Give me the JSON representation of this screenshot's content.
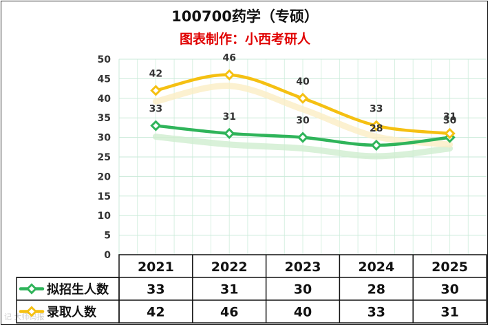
{
  "title": "100700药学（专硕）",
  "subtitle": "图表制作：小西考研人",
  "watermark": "记 大师码报",
  "chart_data": {
    "type": "line",
    "categories": [
      "2021",
      "2022",
      "2023",
      "2024",
      "2025"
    ],
    "series": [
      {
        "name": "拟招生人数",
        "values": [
          33,
          31,
          30,
          28,
          30
        ],
        "color": "#2fb45a"
      },
      {
        "name": "录取人数",
        "values": [
          42,
          46,
          40,
          33,
          31
        ],
        "color": "#f5c012"
      }
    ],
    "ylim": [
      0,
      50
    ],
    "yticks": [
      0,
      5,
      10,
      15,
      20,
      25,
      30,
      35,
      40,
      45,
      50
    ],
    "grid": true,
    "legend": "bottom data table"
  }
}
